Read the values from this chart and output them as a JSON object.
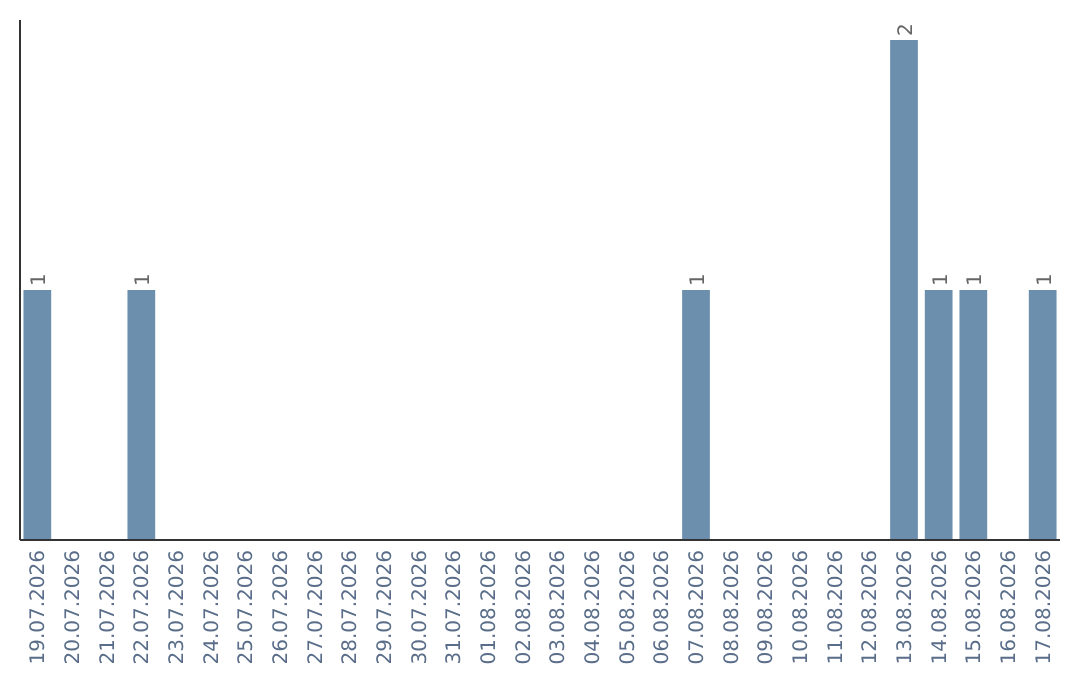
{
  "chart_data": {
    "type": "bar",
    "categories": [
      "19.07.2026",
      "20.07.2026",
      "21.07.2026",
      "22.07.2026",
      "23.07.2026",
      "24.07.2026",
      "25.07.2026",
      "26.07.2026",
      "27.07.2026",
      "28.07.2026",
      "29.07.2026",
      "30.07.2026",
      "31.07.2026",
      "01.08.2026",
      "02.08.2026",
      "03.08.2026",
      "04.08.2026",
      "05.08.2026",
      "06.08.2026",
      "07.08.2026",
      "08.08.2026",
      "09.08.2026",
      "10.08.2026",
      "11.08.2026",
      "12.08.2026",
      "13.08.2026",
      "14.08.2026",
      "15.08.2026",
      "16.08.2026",
      "17.08.2026"
    ],
    "values": [
      1,
      0,
      0,
      1,
      0,
      0,
      0,
      0,
      0,
      0,
      0,
      0,
      0,
      0,
      0,
      0,
      0,
      0,
      0,
      1,
      0,
      0,
      0,
      0,
      0,
      2,
      1,
      1,
      0,
      1
    ],
    "value_labels": [
      "1",
      null,
      null,
      "1",
      null,
      null,
      null,
      null,
      null,
      null,
      null,
      null,
      null,
      null,
      null,
      null,
      null,
      null,
      null,
      "1",
      null,
      null,
      null,
      null,
      null,
      "2",
      "1",
      "1",
      null,
      "1"
    ],
    "color": "#6b8fad",
    "ylim": [
      0,
      2.08
    ],
    "tick_labels": "x"
  }
}
